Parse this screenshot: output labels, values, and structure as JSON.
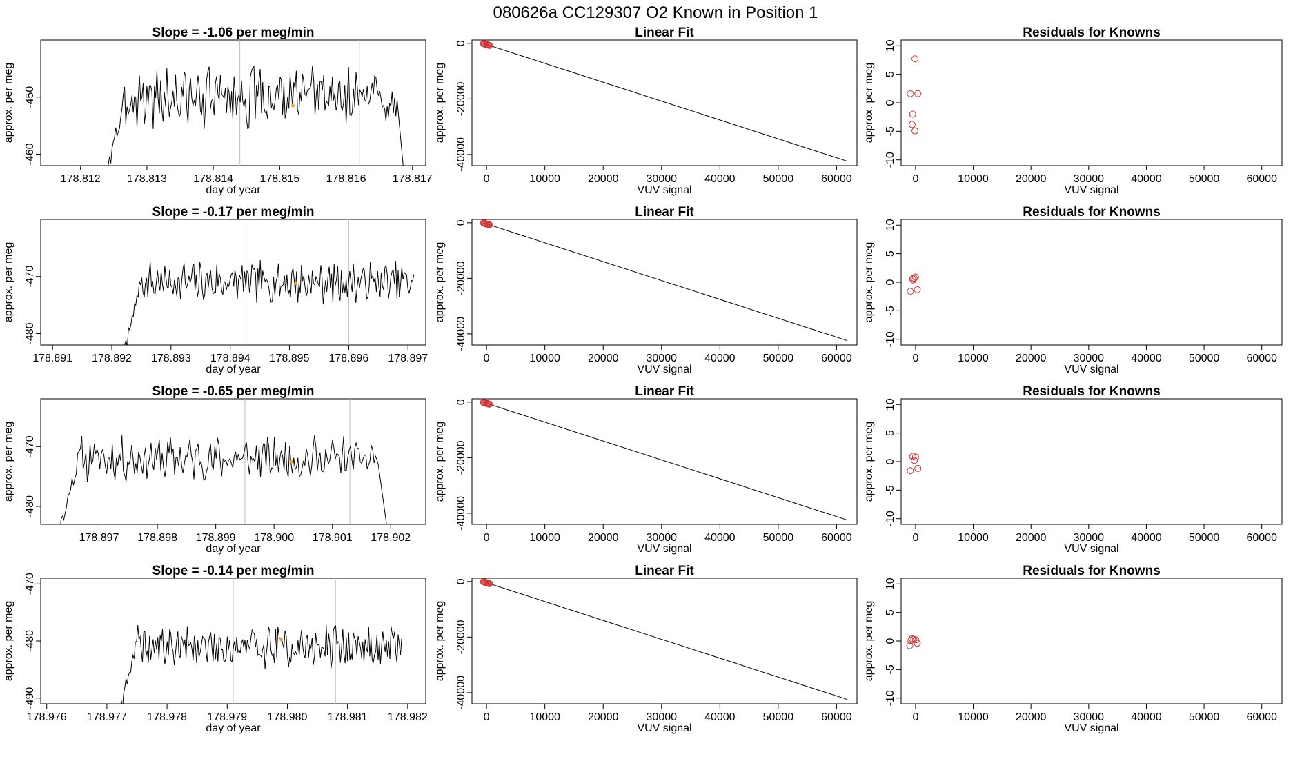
{
  "main_title": "080626a      CC129307    O2 Known in Position  1",
  "chart_data": [
    {
      "type": "line",
      "row": 0,
      "title": "Slope =  -1.06  per meg/min",
      "xlabel": "day of year",
      "ylabel": "approx. per meg",
      "xlim": [
        178.8114,
        178.8172
      ],
      "ylim": [
        -462,
        -440
      ],
      "xticks": [
        178.812,
        178.813,
        178.814,
        178.815,
        178.816,
        178.817
      ],
      "xtick_labels": [
        "178.812",
        "178.813",
        "178.814",
        "178.815",
        "178.816",
        "178.817"
      ],
      "yticks": [
        -460,
        -450
      ],
      "ytick_labels": [
        "-460",
        "-450"
      ],
      "vlines": [
        178.8144,
        178.8162
      ],
      "marker": {
        "x": 178.8152,
        "y": -451.5
      },
      "trace_start": 178.8124,
      "trace_end": 178.8169,
      "level": -450,
      "wiggle": 4.5,
      "seed": 3
    },
    {
      "type": "line",
      "row": 1,
      "title": "Slope =  -0.17  per meg/min",
      "xlabel": "day of year",
      "ylabel": "approx. per meg",
      "xlim": [
        178.8908,
        178.8973
      ],
      "ylim": [
        -482,
        -460
      ],
      "xticks": [
        178.891,
        178.892,
        178.893,
        178.894,
        178.895,
        178.896,
        178.897
      ],
      "xtick_labels": [
        "178.891",
        "178.892",
        "178.893",
        "178.894",
        "178.895",
        "178.896",
        "178.897"
      ],
      "yticks": [
        -480,
        -470
      ],
      "ytick_labels": [
        "-480",
        "-470"
      ],
      "vlines": [
        178.8943,
        178.896
      ],
      "marker": {
        "x": 178.8951,
        "y": -471.2
      },
      "trace_start": 178.8922,
      "trace_end": 178.8971,
      "level": -471,
      "wiggle": 3.0,
      "seed": 7
    },
    {
      "type": "line",
      "row": 2,
      "title": "Slope =  -0.65  per meg/min",
      "xlabel": "day of year",
      "ylabel": "approx. per meg",
      "xlim": [
        178.896,
        178.9026
      ],
      "ylim": [
        -483,
        -462
      ],
      "xticks": [
        178.897,
        178.898,
        178.899,
        178.9,
        178.901,
        178.902
      ],
      "xtick_labels": [
        "178.897",
        "178.898",
        "178.899",
        "178.900",
        "178.901",
        "178.902"
      ],
      "yticks": [
        -480,
        -470
      ],
      "ytick_labels": [
        "-480",
        "-470"
      ],
      "vlines": [
        178.8995,
        178.9013
      ],
      "marker": {
        "x": 178.9003,
        "y": -472.5
      },
      "trace_start": 178.8963,
      "trace_end": 178.902,
      "level": -472,
      "wiggle": 3.0,
      "seed": 11
    },
    {
      "type": "line",
      "row": 3,
      "title": "Slope =  -0.14  per meg/min",
      "xlabel": "day of year",
      "ylabel": "approx. per meg",
      "xlim": [
        178.9759,
        178.9823
      ],
      "ylim": [
        -491,
        -469
      ],
      "xticks": [
        178.976,
        178.977,
        178.978,
        178.979,
        178.98,
        178.981,
        178.982
      ],
      "xtick_labels": [
        "178.976",
        "178.977",
        "178.978",
        "178.979",
        "178.980",
        "178.981",
        "178.982"
      ],
      "yticks": [
        -490,
        -480,
        -470
      ],
      "ytick_labels": [
        "-490",
        "-480",
        "-470"
      ],
      "vlines": [
        178.9791,
        178.9808
      ],
      "marker": {
        "x": 178.9799,
        "y": -479.8
      },
      "trace_start": 178.9772,
      "trace_end": 178.9819,
      "level": -481,
      "wiggle": 3.0,
      "seed": 19
    },
    {
      "type": "scatter",
      "row": 0,
      "title": "Linear Fit",
      "xlabel": "VUV signal",
      "ylabel": "approx. per meg",
      "xlim": [
        -2500,
        63500
      ],
      "ylim": [
        -44000,
        1200
      ],
      "xticks": [
        0,
        10000,
        20000,
        30000,
        40000,
        50000,
        60000
      ],
      "xtick_labels": [
        "0",
        "10000",
        "20000",
        "30000",
        "40000",
        "50000",
        "60000"
      ],
      "yticks": [
        -40000,
        -20000,
        0
      ],
      "ytick_labels": [
        "-40000",
        "-20000",
        "0"
      ],
      "fit_line": {
        "x": [
          -600,
          61800
        ],
        "y": [
          0,
          -42400
        ]
      },
      "points": {
        "x": [
          -520,
          -380,
          -250,
          -100,
          60,
          200,
          330,
          480
        ],
        "y": [
          -60,
          -150,
          -280,
          -380,
          -460,
          -560,
          -650,
          -760
        ]
      }
    },
    {
      "type": "scatter",
      "row": 1,
      "title": "Linear Fit",
      "xlabel": "VUV signal",
      "ylabel": "approx. per meg",
      "xlim": [
        -2500,
        63500
      ],
      "ylim": [
        -44000,
        1200
      ],
      "xticks": [
        0,
        10000,
        20000,
        30000,
        40000,
        50000,
        60000
      ],
      "xtick_labels": [
        "0",
        "10000",
        "20000",
        "30000",
        "40000",
        "50000",
        "60000"
      ],
      "yticks": [
        -40000,
        -20000,
        0
      ],
      "ytick_labels": [
        "-40000",
        "-20000",
        "0"
      ],
      "fit_line": {
        "x": [
          -600,
          61800
        ],
        "y": [
          0,
          -42400
        ]
      },
      "points": {
        "x": [
          -520,
          -380,
          -250,
          -100,
          60,
          200,
          330,
          480
        ],
        "y": [
          -60,
          -150,
          -280,
          -380,
          -460,
          -560,
          -650,
          -760
        ]
      }
    },
    {
      "type": "scatter",
      "row": 2,
      "title": "Linear Fit",
      "xlabel": "VUV signal",
      "ylabel": "approx. per meg",
      "xlim": [
        -2500,
        63500
      ],
      "ylim": [
        -44000,
        1200
      ],
      "xticks": [
        0,
        10000,
        20000,
        30000,
        40000,
        50000,
        60000
      ],
      "xtick_labels": [
        "0",
        "10000",
        "20000",
        "30000",
        "40000",
        "50000",
        "60000"
      ],
      "yticks": [
        -40000,
        -20000,
        0
      ],
      "ytick_labels": [
        "-40000",
        "-20000",
        "0"
      ],
      "fit_line": {
        "x": [
          -600,
          61800
        ],
        "y": [
          0,
          -42400
        ]
      },
      "points": {
        "x": [
          -520,
          -380,
          -250,
          -100,
          60,
          200,
          330,
          480
        ],
        "y": [
          -60,
          -150,
          -280,
          -380,
          -460,
          -560,
          -650,
          -760
        ]
      }
    },
    {
      "type": "scatter",
      "row": 3,
      "title": "Linear Fit",
      "xlabel": "VUV signal",
      "ylabel": "approx. per meg",
      "xlim": [
        -2500,
        63500
      ],
      "ylim": [
        -44000,
        1200
      ],
      "xticks": [
        0,
        10000,
        20000,
        30000,
        40000,
        50000,
        60000
      ],
      "xtick_labels": [
        "0",
        "10000",
        "20000",
        "30000",
        "40000",
        "50000",
        "60000"
      ],
      "yticks": [
        -40000,
        -20000,
        0
      ],
      "ytick_labels": [
        "-40000",
        "-20000",
        "0"
      ],
      "fit_line": {
        "x": [
          -600,
          61800
        ],
        "y": [
          0,
          -42400
        ]
      },
      "points": {
        "x": [
          -520,
          -380,
          -250,
          -100,
          60,
          200,
          330,
          480
        ],
        "y": [
          -60,
          -150,
          -280,
          -380,
          -460,
          -560,
          -650,
          -760
        ]
      }
    },
    {
      "type": "scatter",
      "row": 0,
      "title": "Residuals for Knowns",
      "xlabel": "VUV signal",
      "ylabel": "approx. per meg",
      "xlim": [
        -2500,
        63500
      ],
      "ylim": [
        -11,
        11
      ],
      "xticks": [
        0,
        10000,
        20000,
        30000,
        40000,
        50000,
        60000
      ],
      "xtick_labels": [
        "0",
        "10000",
        "20000",
        "30000",
        "40000",
        "50000",
        "60000"
      ],
      "yticks": [
        -10,
        -5,
        0,
        5,
        10
      ],
      "ytick_labels": [
        "-10",
        "-5",
        "0",
        "5",
        "10"
      ],
      "points": {
        "x": [
          -100,
          -900,
          400,
          -500,
          -600,
          -100
        ],
        "y": [
          7.7,
          1.6,
          1.6,
          -2.0,
          -3.8,
          -4.9
        ]
      }
    },
    {
      "type": "scatter",
      "row": 1,
      "title": "Residuals for Knowns",
      "xlabel": "VUV signal",
      "ylabel": "approx. per meg",
      "xlim": [
        -2500,
        63500
      ],
      "ylim": [
        -11,
        11
      ],
      "xticks": [
        0,
        10000,
        20000,
        30000,
        40000,
        50000,
        60000
      ],
      "xtick_labels": [
        "0",
        "10000",
        "20000",
        "30000",
        "40000",
        "50000",
        "60000"
      ],
      "yticks": [
        -10,
        -5,
        0,
        5,
        10
      ],
      "ytick_labels": [
        "-10",
        "-5",
        "0",
        "5",
        "10"
      ],
      "points": {
        "x": [
          -500,
          -250,
          0,
          -400,
          300,
          -900
        ],
        "y": [
          0.6,
          0.7,
          0.9,
          0.4,
          -1.3,
          -1.6
        ]
      }
    },
    {
      "type": "scatter",
      "row": 2,
      "title": "Residuals for Knowns",
      "xlabel": "VUV signal",
      "ylabel": "approx. per meg",
      "xlim": [
        -2500,
        63500
      ],
      "ylim": [
        -11,
        11
      ],
      "xticks": [
        0,
        10000,
        20000,
        30000,
        40000,
        50000,
        60000
      ],
      "xtick_labels": [
        "0",
        "10000",
        "20000",
        "30000",
        "40000",
        "50000",
        "60000"
      ],
      "yticks": [
        -10,
        -5,
        0,
        5,
        10
      ],
      "ytick_labels": [
        "-10",
        "-5",
        "0",
        "5",
        "10"
      ],
      "points": {
        "x": [
          -500,
          0,
          -200,
          400,
          -900
        ],
        "y": [
          0.9,
          0.8,
          0.2,
          -1.2,
          -1.6
        ]
      }
    },
    {
      "type": "scatter",
      "row": 3,
      "title": "Residuals for Knowns",
      "xlabel": "VUV signal",
      "ylabel": "approx. per meg",
      "xlim": [
        -2500,
        63500
      ],
      "ylim": [
        -11,
        11
      ],
      "xticks": [
        0,
        10000,
        20000,
        30000,
        40000,
        50000,
        60000
      ],
      "xtick_labels": [
        "0",
        "10000",
        "20000",
        "30000",
        "40000",
        "50000",
        "60000"
      ],
      "yticks": [
        -10,
        -5,
        0,
        5,
        10
      ],
      "ytick_labels": [
        "-10",
        "-5",
        "0",
        "5",
        "10"
      ],
      "points": {
        "x": [
          -600,
          -300,
          0,
          -800,
          300,
          -1000
        ],
        "y": [
          0.4,
          0.3,
          0.2,
          0.1,
          -0.4,
          -0.8
        ]
      }
    }
  ]
}
